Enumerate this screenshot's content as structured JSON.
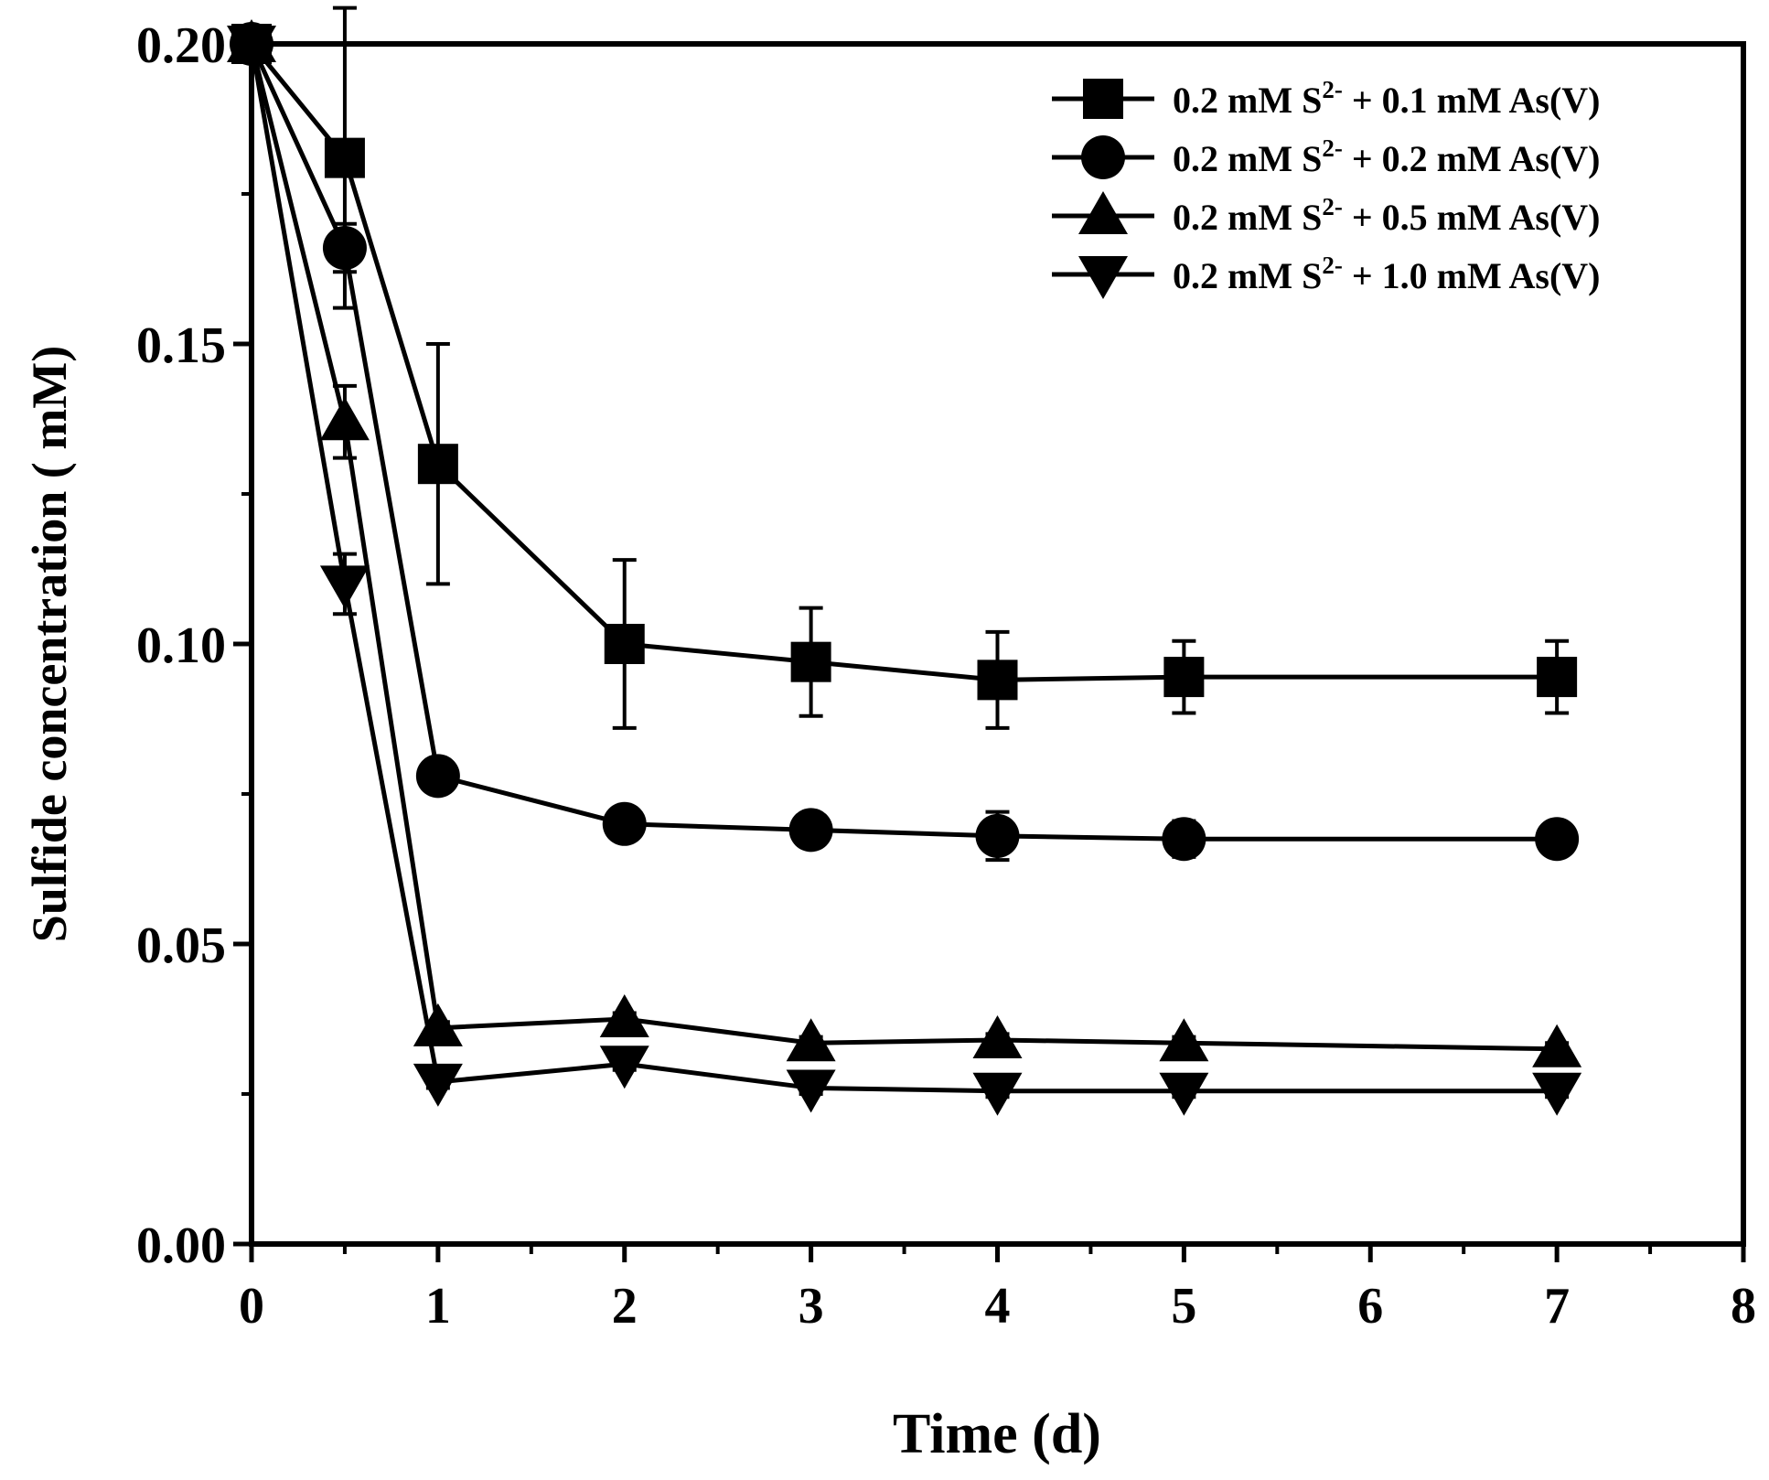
{
  "chart_data": {
    "type": "line",
    "title": "",
    "xlabel": "Time (d)",
    "ylabel": "Sulfide concentration ( mM)",
    "xlim": [
      0,
      8
    ],
    "ylim": [
      0,
      0.2
    ],
    "xticks": [
      0,
      1,
      2,
      3,
      4,
      5,
      6,
      7,
      8
    ],
    "xtick_labels": [
      "0",
      "1",
      "2",
      "3",
      "4",
      "5",
      "6",
      "7",
      "8"
    ],
    "yticks": [
      0,
      0.05,
      0.1,
      0.15,
      0.2
    ],
    "ytick_labels": [
      "0.00",
      "0.05",
      "0.10",
      "0.15",
      "0.20"
    ],
    "grid": false,
    "legend_position": "top-right",
    "x": [
      0,
      0.5,
      1,
      2,
      3,
      4,
      5,
      7
    ],
    "series": [
      {
        "name": "0.2 mM S2- + 0.1 mM As(V)",
        "legend_prefix": "0.2 mM S",
        "legend_sup": "2-",
        "legend_suffix": " + 0.1 mM As(V)",
        "marker": "square",
        "values": [
          0.2,
          0.181,
          0.13,
          0.1,
          0.097,
          0.094,
          0.0945,
          0.0945
        ],
        "errors": [
          0,
          0.025,
          0.02,
          0.014,
          0.009,
          0.008,
          0.006,
          0.006
        ]
      },
      {
        "name": "0.2 mM S2- + 0.2 mM As(V)",
        "legend_prefix": "0.2 mM S",
        "legend_sup": "2-",
        "legend_suffix": " + 0.2 mM As(V)",
        "marker": "circle",
        "values": [
          0.2,
          0.166,
          0.078,
          0.07,
          0.069,
          0.068,
          0.0675,
          0.0675
        ],
        "errors": [
          0,
          0.004,
          0.002,
          0.002,
          0.002,
          0.004,
          0.003,
          0.002
        ]
      },
      {
        "name": "0.2 mM S2- + 0.5 mM As(V)",
        "legend_prefix": "0.2 mM S",
        "legend_sup": "2-",
        "legend_suffix": " + 0.5 mM As(V)",
        "marker": "triangle-up",
        "values": [
          0.2,
          0.137,
          0.036,
          0.0375,
          0.0335,
          0.034,
          0.0335,
          0.0325
        ],
        "errors": [
          0,
          0.006,
          0.001,
          0.001,
          0.001,
          0.001,
          0.001,
          0.001
        ]
      },
      {
        "name": "0.2 mM S2- + 1.0 mM As(V)",
        "legend_prefix": "0.2 mM S",
        "legend_sup": "2-",
        "legend_suffix": " + 1.0 mM As(V)",
        "marker": "triangle-down",
        "values": [
          0.2,
          0.11,
          0.027,
          0.03,
          0.026,
          0.0255,
          0.0255,
          0.0255
        ],
        "errors": [
          0,
          0.005,
          0.001,
          0.001,
          0.001,
          0.001,
          0.001,
          0.001
        ]
      }
    ]
  }
}
